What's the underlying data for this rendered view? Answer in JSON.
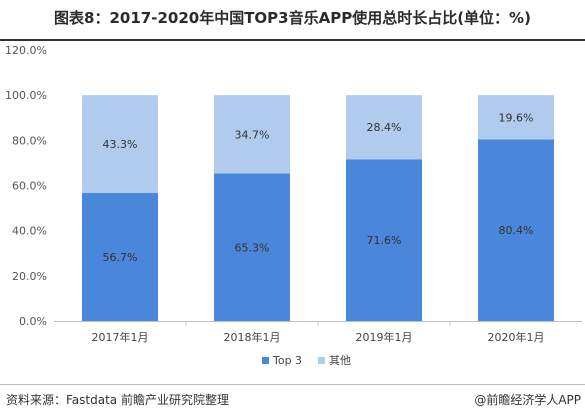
{
  "title": "图表8：2017-2020年中国TOP3音乐APP使用总时长占比(单位：%)",
  "footer": {
    "source": "资料来源：Fastdata 前瞻产业研究院整理",
    "brand": "@前瞻经济学人APP"
  },
  "colors": {
    "top3": "#4a86d9",
    "other": "#b0cbee"
  },
  "chart_data": {
    "type": "bar",
    "stacked": true,
    "categories": [
      "2017年1月",
      "2018年1月",
      "2019年1月",
      "2020年1月"
    ],
    "series": [
      {
        "name": "Top 3",
        "values": [
          56.7,
          65.3,
          71.6,
          80.4
        ],
        "labels": [
          "56.7%",
          "65.3%",
          "71.6%",
          "80.4%"
        ]
      },
      {
        "name": "其他",
        "values": [
          43.3,
          34.7,
          28.4,
          19.6
        ],
        "labels": [
          "43.3%",
          "34.7%",
          "28.4%",
          "19.6%"
        ]
      }
    ],
    "yticks": [
      "0.0%",
      "20.0%",
      "40.0%",
      "60.0%",
      "80.0%",
      "100.0%",
      "120.0%"
    ],
    "ylim": [
      0,
      120
    ],
    "grid": false,
    "legend": "bottom"
  }
}
